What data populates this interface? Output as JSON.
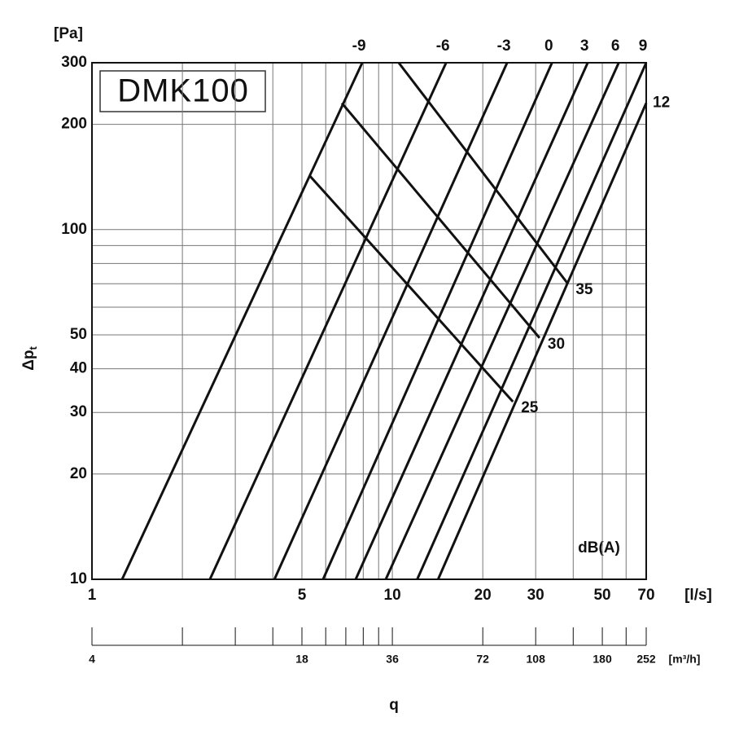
{
  "chart_data": {
    "type": "line",
    "title": "DMK100",
    "y_unit": "[Pa]",
    "y_label": "Δp",
    "y_label_sub": "t",
    "x_unit": "[l/s]",
    "x2_unit": "[m³/h]",
    "x_label": "q",
    "noise_label": "dB(A)",
    "xlog": true,
    "ylog": true,
    "grid": true,
    "color": "#111111",
    "xlim": [
      1,
      70
    ],
    "xticks": [
      1,
      5,
      10,
      20,
      30,
      50,
      70
    ],
    "x_minor_ticks": [
      2,
      3,
      4,
      6,
      7,
      8,
      9,
      40,
      60
    ],
    "ylim": [
      10,
      300
    ],
    "yticks": [
      10,
      20,
      30,
      40,
      50,
      100,
      200,
      300
    ],
    "y_minor_ticks": [
      60,
      70,
      80,
      90
    ],
    "x2lim": [
      3.6,
      252
    ],
    "x2ticks": [
      {
        "value": 3.6,
        "label": "4"
      },
      18,
      36,
      72,
      108,
      180,
      252
    ],
    "x2_minor_ticks": [
      7.2,
      10.8,
      14.4,
      21.6,
      25.2,
      28.8,
      32.4,
      144,
      216
    ],
    "series": [
      {
        "name": "-9",
        "x": [
          1.26,
          7.94
        ],
        "values": [
          10,
          300
        ]
      },
      {
        "name": "-6",
        "x": [
          2.47,
          15.1
        ],
        "values": [
          10,
          300
        ]
      },
      {
        "name": "-3",
        "x": [
          4.05,
          24.1
        ],
        "values": [
          10,
          300
        ]
      },
      {
        "name": "0",
        "x": [
          5.88,
          34.0
        ],
        "values": [
          10,
          300
        ]
      },
      {
        "name": "3",
        "x": [
          7.55,
          44.7
        ],
        "values": [
          10,
          300
        ]
      },
      {
        "name": "6",
        "x": [
          9.51,
          56.7
        ],
        "values": [
          10,
          300
        ]
      },
      {
        "name": "9",
        "x": [
          12.1,
          70
        ],
        "values": [
          10,
          300
        ]
      },
      {
        "name": "12",
        "x": [
          14.2,
          70
        ],
        "values": [
          10,
          230
        ]
      }
    ],
    "noise_series": [
      {
        "name": "25",
        "x": [
          5.29,
          25.2
        ],
        "values": [
          143,
          32.2
        ]
      },
      {
        "name": "30",
        "x": [
          6.79,
          30.9
        ],
        "values": [
          230,
          49.0
        ]
      },
      {
        "name": "35",
        "x": [
          10.5,
          38.3
        ],
        "values": [
          300,
          70.2
        ]
      }
    ]
  }
}
